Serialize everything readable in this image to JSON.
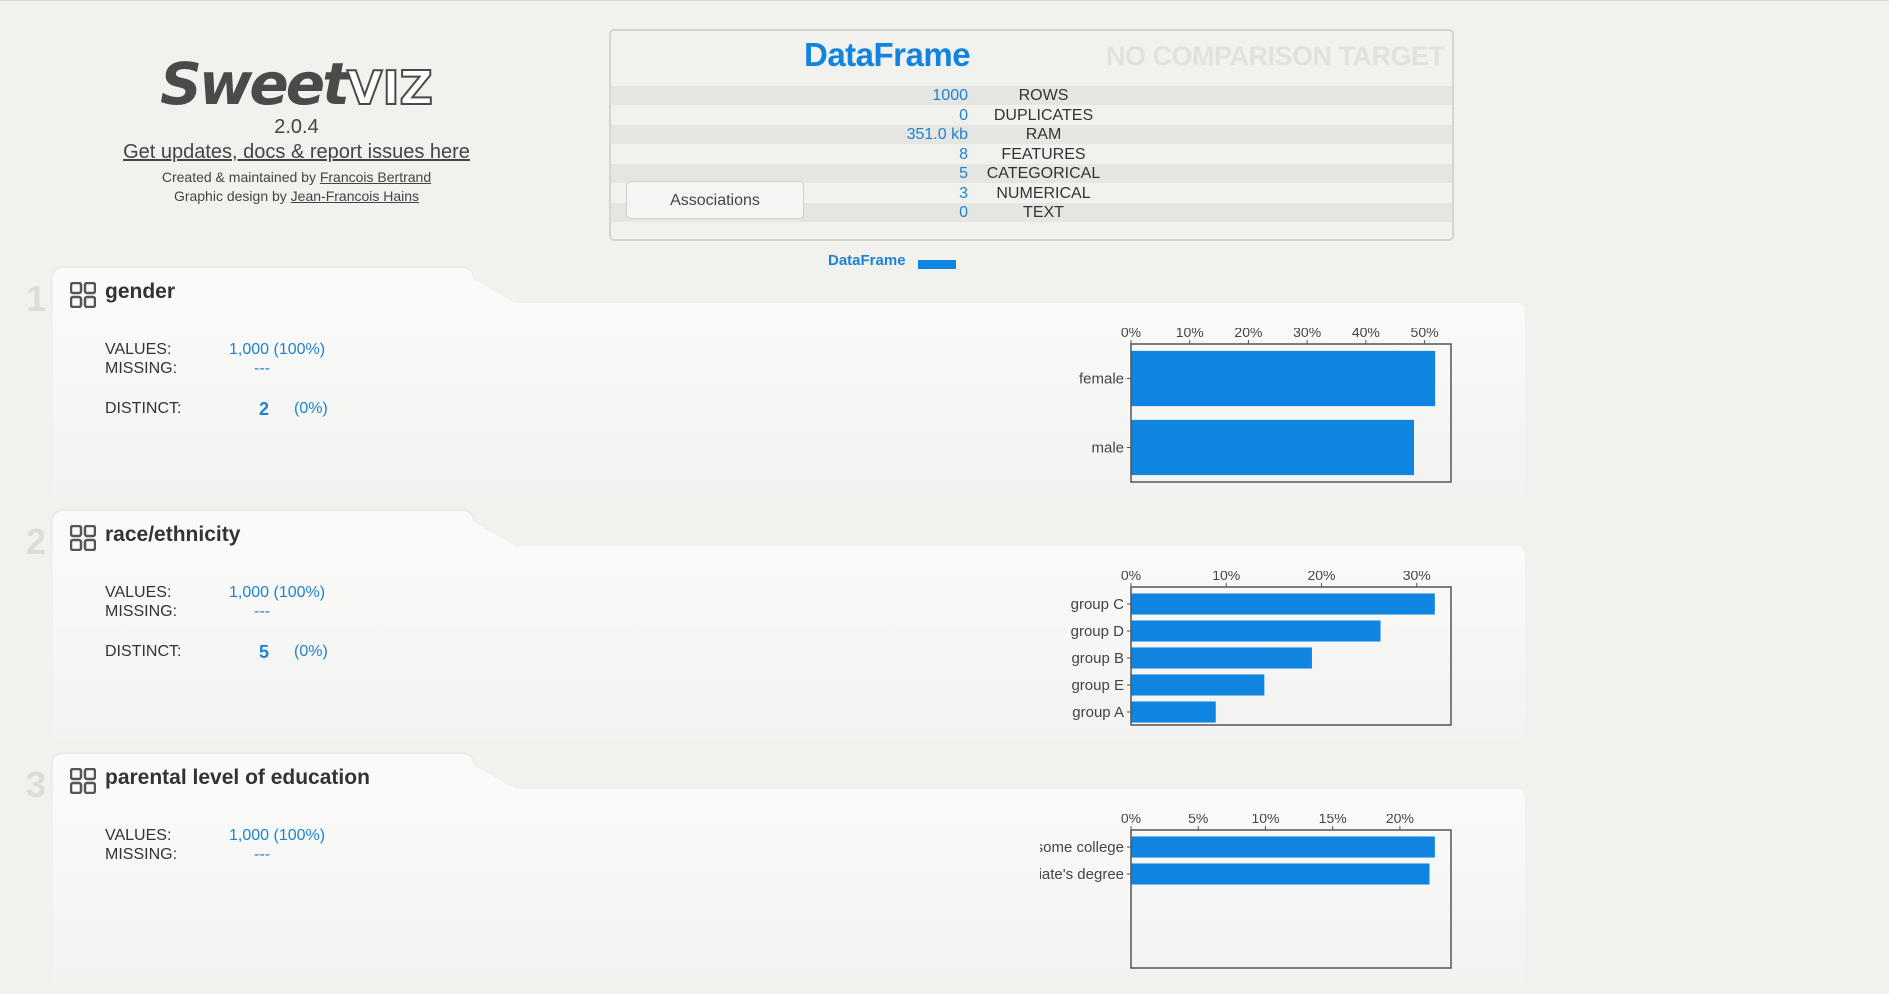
{
  "header": {
    "logo_text": "Sweetviz",
    "version": "2.0.4",
    "updates_link": "Get updates, docs & report issues here",
    "created_by_prefix": "Created & maintained by",
    "created_by_name": "Francois Bertrand",
    "design_by_prefix": "Graphic design by",
    "design_by_name": "Jean-Francois Hains"
  },
  "summary": {
    "title": "DataFrame",
    "comparison": "NO COMPARISON TARGET",
    "rows": [
      {
        "value": "1000",
        "label": "ROWS"
      },
      {
        "value": "0",
        "label": "DUPLICATES"
      },
      {
        "value": "351.0 kb",
        "label": "RAM"
      },
      {
        "value": "8",
        "label": "FEATURES"
      },
      {
        "value": "5",
        "label": "CATEGORICAL"
      },
      {
        "value": "3",
        "label": "NUMERICAL"
      },
      {
        "value": "0",
        "label": "TEXT"
      }
    ],
    "associations_button": "Associations",
    "legend_label": "DataFrame"
  },
  "colors": {
    "accent": "#0f84e0",
    "value_text": "#1e82d2"
  },
  "features": [
    {
      "number": "1",
      "name": "gender",
      "values_label": "VALUES:",
      "values": "1,000 (100%)",
      "missing_label": "MISSING:",
      "missing": "---",
      "distinct_label": "DISTINCT:",
      "distinct": "2",
      "distinct_pct": "(0%)"
    },
    {
      "number": "2",
      "name": "race/ethnicity",
      "values_label": "VALUES:",
      "values": "1,000 (100%)",
      "missing_label": "MISSING:",
      "missing": "---",
      "distinct_label": "DISTINCT:",
      "distinct": "5",
      "distinct_pct": "(0%)"
    },
    {
      "number": "3",
      "name": "parental level of education",
      "values_label": "VALUES:",
      "values": "1,000 (100%)",
      "missing_label": "MISSING:",
      "missing": "---"
    }
  ],
  "chart_data": [
    {
      "type": "bar",
      "orientation": "horizontal",
      "categories": [
        "female",
        "male"
      ],
      "values": [
        51.8,
        48.2
      ],
      "xticks": [
        "0%",
        "10%",
        "20%",
        "30%",
        "40%",
        "50%"
      ],
      "xlim": [
        0,
        54.5
      ]
    },
    {
      "type": "bar",
      "orientation": "horizontal",
      "categories": [
        "group C",
        "group D",
        "group B",
        "group E",
        "group A"
      ],
      "values": [
        31.9,
        26.2,
        19.0,
        14.0,
        8.9
      ],
      "xticks": [
        "0%",
        "10%",
        "20%",
        "30%"
      ],
      "xlim": [
        0,
        33.6
      ]
    },
    {
      "type": "bar",
      "orientation": "horizontal",
      "categories": [
        "some college",
        "associate's degree"
      ],
      "values": [
        22.6,
        22.2
      ],
      "xticks": [
        "0%",
        "5%",
        "10%",
        "15%",
        "20%"
      ],
      "xlim": [
        0,
        23.8
      ]
    }
  ]
}
